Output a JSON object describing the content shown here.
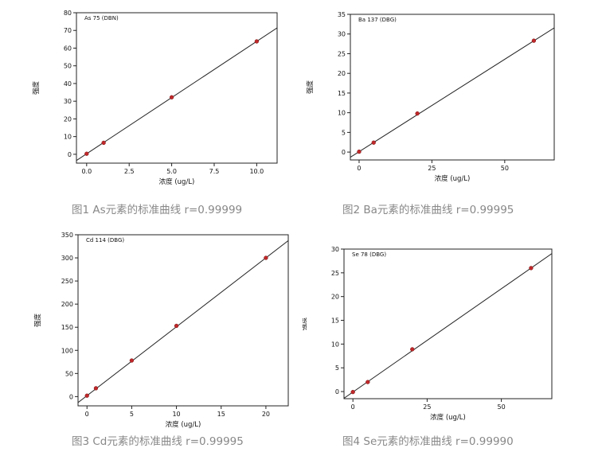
{
  "chart_data": [
    {
      "type": "scatter",
      "title": "As 75 (DBN)",
      "xlabel": "浓度 (ug/L)",
      "ylabel": "强度",
      "xlim": [
        -0.6,
        11.2
      ],
      "ylim": [
        -5,
        80
      ],
      "xticks": [
        0.0,
        2.5,
        5.0,
        7.5,
        10.0
      ],
      "xtick_labels": [
        "0.0",
        "2.5",
        "5.0",
        "7.5",
        "10.0"
      ],
      "yticks": [
        0,
        10,
        20,
        30,
        40,
        50,
        60,
        70,
        80
      ],
      "x": [
        0,
        1,
        5,
        10
      ],
      "y": [
        0.3,
        6.5,
        32.2,
        63.8
      ],
      "fit_line": {
        "slope": 6.35,
        "intercept": 0.3
      },
      "caption": "图1 As元素的标准曲线 r=0.99999"
    },
    {
      "type": "scatter",
      "title": "Ba 137 (DBG)",
      "xlabel": "浓度 (ug/L)",
      "ylabel": "强度",
      "xlim": [
        -3,
        67
      ],
      "ylim": [
        -2,
        35
      ],
      "xticks": [
        0,
        25,
        50
      ],
      "xtick_labels": [
        "0",
        "25",
        "50"
      ],
      "yticks": [
        0,
        5,
        10,
        15,
        20,
        25,
        30,
        35
      ],
      "x": [
        0,
        5,
        20,
        60
      ],
      "y": [
        0.1,
        2.4,
        9.8,
        28.3
      ],
      "fit_line": {
        "slope": 0.4695,
        "intercept": 0.1
      },
      "caption": "图2 Ba元素的标准曲线 r=0.99995"
    },
    {
      "type": "scatter",
      "title": "Cd 114 (DBG)",
      "xlabel": "浓度 (ug/L)",
      "ylabel": "强度",
      "xlim": [
        -1,
        22.5
      ],
      "ylim": [
        -20,
        350
      ],
      "xticks": [
        0,
        5,
        10,
        15,
        20
      ],
      "xtick_labels": [
        "0",
        "5",
        "10",
        "15",
        "20"
      ],
      "yticks": [
        0,
        50,
        100,
        150,
        200,
        250,
        300,
        350
      ],
      "x": [
        0,
        1,
        5,
        10,
        20
      ],
      "y": [
        2,
        18,
        78,
        153,
        300
      ],
      "fit_line": {
        "slope": 14.9,
        "intercept": 2
      },
      "caption": "图3 Cd元素的标准曲线 r=0.99995"
    },
    {
      "type": "scatter",
      "title": "Se 78 (DBG)",
      "xlabel": "浓度 (ug/L)",
      "ylabel": "强度",
      "xlim": [
        -3,
        67
      ],
      "ylim": [
        -1.5,
        30
      ],
      "xticks": [
        0,
        25,
        50
      ],
      "xtick_labels": [
        "0",
        "25",
        "50"
      ],
      "yticks": [
        0,
        5,
        10,
        15,
        20,
        25,
        30
      ],
      "x": [
        0,
        5,
        20,
        60
      ],
      "y": [
        -0.1,
        2.0,
        8.9,
        26.0
      ],
      "fit_line": {
        "slope": 0.435,
        "intercept": -0.1
      },
      "caption": "图4 Se元素的标准曲线 r=0.99990"
    }
  ]
}
